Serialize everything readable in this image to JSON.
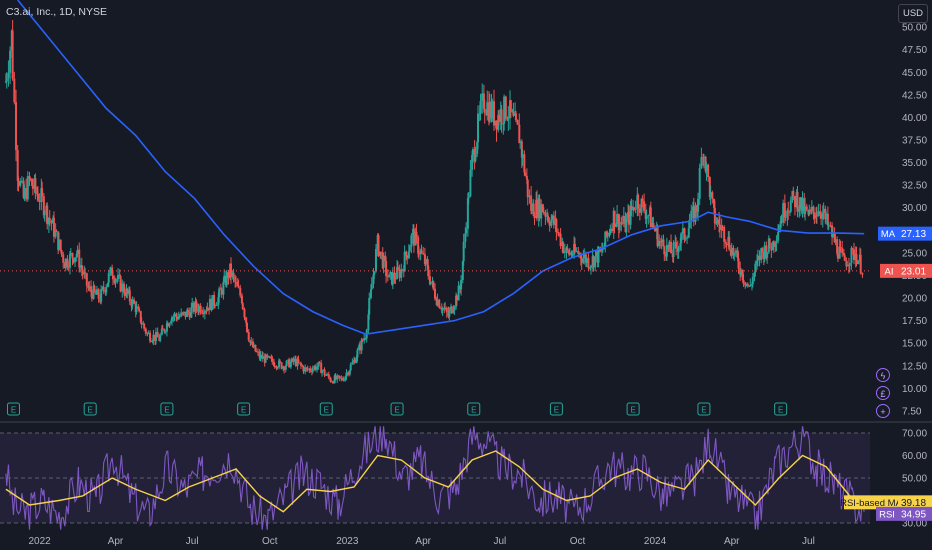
{
  "header": {
    "title": "C3.ai, Inc., 1D, NYSE",
    "currency": "USD"
  },
  "icons": {
    "earnings": "earnings-E-icon",
    "flash": "flash-icon",
    "dividend": "dividend-icon",
    "plus": "plus-icon"
  },
  "colors": {
    "background": "#161a25",
    "up": "#26a69a",
    "down": "#ef5350",
    "ma_line": "#2962ff",
    "rsi_line": "#7e57c2",
    "rsi_ma_line": "#f7d34a",
    "rsi_band": "#7e57c2",
    "last_price": "#ef5350",
    "text": "#b2b5be"
  },
  "chart_data": [
    {
      "type": "candlestick",
      "title": "C3.ai, Inc., 1D, NYSE",
      "ylim": [
        6.5,
        53
      ],
      "y_ticks": [
        "7.50",
        "10.00",
        "12.50",
        "15.00",
        "17.50",
        "20.00",
        "22.50",
        "25.00",
        "27.50",
        "30.00",
        "32.50",
        "35.00",
        "37.50",
        "40.00",
        "42.50",
        "45.00",
        "47.50",
        "50.00",
        "52.50"
      ],
      "x_ticks": [
        "2022",
        "Apr",
        "Jul",
        "Oct",
        "2023",
        "Apr",
        "Jul",
        "Oct",
        "2024",
        "Apr",
        "Jul"
      ],
      "series_close": [
        [
          "2021-11-22",
          44
        ],
        [
          "2021-11-29",
          49
        ],
        [
          "2021-12-06",
          34
        ],
        [
          "2021-12-13",
          31
        ],
        [
          "2021-12-20",
          33
        ],
        [
          "2022-01-03",
          31
        ],
        [
          "2022-01-17",
          28
        ],
        [
          "2022-01-31",
          24
        ],
        [
          "2022-02-14",
          25
        ],
        [
          "2022-02-28",
          21
        ],
        [
          "2022-03-14",
          20
        ],
        [
          "2022-03-28",
          23
        ],
        [
          "2022-04-11",
          21
        ],
        [
          "2022-04-25",
          19
        ],
        [
          "2022-05-09",
          16
        ],
        [
          "2022-05-23",
          15.5
        ],
        [
          "2022-06-06",
          18
        ],
        [
          "2022-06-20",
          18
        ],
        [
          "2022-07-05",
          19
        ],
        [
          "2022-07-18",
          19
        ],
        [
          "2022-08-01",
          20
        ],
        [
          "2022-08-15",
          23
        ],
        [
          "2022-08-29",
          20
        ],
        [
          "2022-09-08",
          15
        ],
        [
          "2022-09-19",
          13.5
        ],
        [
          "2022-10-03",
          13
        ],
        [
          "2022-10-17",
          12.5
        ],
        [
          "2022-10-31",
          13
        ],
        [
          "2022-11-14",
          12
        ],
        [
          "2022-11-28",
          12.5
        ],
        [
          "2022-12-12",
          11
        ],
        [
          "2022-12-27",
          11
        ],
        [
          "2023-01-09",
          13
        ],
        [
          "2023-01-23",
          16
        ],
        [
          "2023-02-06",
          26
        ],
        [
          "2023-02-20",
          22
        ],
        [
          "2023-03-06",
          23
        ],
        [
          "2023-03-20",
          27
        ],
        [
          "2023-04-03",
          24
        ],
        [
          "2023-04-17",
          20
        ],
        [
          "2023-05-01",
          18
        ],
        [
          "2023-05-15",
          21
        ],
        [
          "2023-05-29",
          35
        ],
        [
          "2023-06-12",
          42
        ],
        [
          "2023-06-26",
          40
        ],
        [
          "2023-07-10",
          41
        ],
        [
          "2023-07-24",
          38
        ],
        [
          "2023-08-07",
          30
        ],
        [
          "2023-08-21",
          30
        ],
        [
          "2023-09-05",
          28
        ],
        [
          "2023-09-18",
          25
        ],
        [
          "2023-10-02",
          25
        ],
        [
          "2023-10-16",
          24
        ],
        [
          "2023-10-30",
          25
        ],
        [
          "2023-11-13",
          29
        ],
        [
          "2023-11-27",
          28
        ],
        [
          "2023-12-11",
          31
        ],
        [
          "2023-12-26",
          29
        ],
        [
          "2024-01-08",
          26
        ],
        [
          "2024-01-22",
          25
        ],
        [
          "2024-02-05",
          27
        ],
        [
          "2024-02-20",
          30
        ],
        [
          "2024-02-27",
          37
        ],
        [
          "2024-03-11",
          29
        ],
        [
          "2024-03-25",
          27
        ],
        [
          "2024-04-08",
          24
        ],
        [
          "2024-04-22",
          21
        ],
        [
          "2024-05-06",
          25
        ],
        [
          "2024-05-20",
          26
        ],
        [
          "2024-06-03",
          30
        ],
        [
          "2024-06-17",
          31
        ],
        [
          "2024-07-01",
          29
        ],
        [
          "2024-07-15",
          30
        ],
        [
          "2024-07-29",
          27
        ],
        [
          "2024-08-12",
          24
        ],
        [
          "2024-08-26",
          25
        ],
        [
          "2024-09-05",
          23.01
        ]
      ],
      "series_ma": [
        [
          "2021-12-06",
          53
        ],
        [
          "2022-01-10",
          49
        ],
        [
          "2022-02-14",
          45
        ],
        [
          "2022-03-21",
          41
        ],
        [
          "2022-04-25",
          38
        ],
        [
          "2022-05-30",
          34
        ],
        [
          "2022-07-04",
          31
        ],
        [
          "2022-08-08",
          27
        ],
        [
          "2022-09-12",
          23.5
        ],
        [
          "2022-10-17",
          20.5
        ],
        [
          "2022-11-21",
          18.5
        ],
        [
          "2022-12-26",
          17
        ],
        [
          "2023-01-23",
          16
        ],
        [
          "2023-02-27",
          16.5
        ],
        [
          "2023-04-03",
          17
        ],
        [
          "2023-05-08",
          17.5
        ],
        [
          "2023-06-12",
          18.5
        ],
        [
          "2023-07-17",
          20.5
        ],
        [
          "2023-08-21",
          23
        ],
        [
          "2023-09-25",
          24.5
        ],
        [
          "2023-10-30",
          25.5
        ],
        [
          "2023-12-04",
          27
        ],
        [
          "2024-01-08",
          28
        ],
        [
          "2024-02-12",
          28.5
        ],
        [
          "2024-03-04",
          29.5
        ],
        [
          "2024-03-25",
          29
        ],
        [
          "2024-04-22",
          28.5
        ],
        [
          "2024-05-27",
          27.5
        ],
        [
          "2024-07-01",
          27.2
        ],
        [
          "2024-08-05",
          27.2
        ],
        [
          "2024-09-05",
          27.13
        ]
      ],
      "last_price": {
        "label": "AI",
        "value": "23.01"
      },
      "ma_value": {
        "label": "MA",
        "value": "27.13"
      },
      "earnings_dates": [
        "2021-12-01",
        "2022-03-02",
        "2022-06-01",
        "2022-08-31",
        "2022-12-07",
        "2023-03-01",
        "2023-05-31",
        "2023-09-06",
        "2023-12-06",
        "2024-02-28",
        "2024-05-29"
      ]
    },
    {
      "type": "line",
      "ylim": [
        26,
        74
      ],
      "y_ticks": [
        "30.00",
        "40.00",
        "50.00",
        "60.00",
        "70.00"
      ],
      "bands": [
        30,
        70
      ],
      "midline": 50,
      "series": [
        {
          "name": "RSI",
          "value": "34.95"
        },
        {
          "name": "RSI-based MA",
          "value": "39.18"
        }
      ],
      "rsi": [
        [
          "2021-11-22",
          55
        ],
        [
          "2021-12-01",
          38
        ],
        [
          "2021-12-15",
          34
        ],
        [
          "2022-01-05",
          40
        ],
        [
          "2022-01-26",
          33
        ],
        [
          "2022-02-16",
          48
        ],
        [
          "2022-03-09",
          40
        ],
        [
          "2022-03-30",
          60
        ],
        [
          "2022-04-20",
          42
        ],
        [
          "2022-05-11",
          33
        ],
        [
          "2022-06-01",
          55
        ],
        [
          "2022-06-22",
          45
        ],
        [
          "2022-07-13",
          52
        ],
        [
          "2022-08-03",
          56
        ],
        [
          "2022-08-17",
          60
        ],
        [
          "2022-09-07",
          38
        ],
        [
          "2022-09-28",
          31
        ],
        [
          "2022-10-19",
          42
        ],
        [
          "2022-11-09",
          52
        ],
        [
          "2022-11-30",
          48
        ],
        [
          "2022-12-21",
          38
        ],
        [
          "2023-01-11",
          55
        ],
        [
          "2023-02-01",
          67
        ],
        [
          "2023-02-15",
          72
        ],
        [
          "2023-03-08",
          50
        ],
        [
          "2023-03-29",
          58
        ],
        [
          "2023-04-19",
          42
        ],
        [
          "2023-05-10",
          45
        ],
        [
          "2023-05-31",
          70
        ],
        [
          "2023-06-14",
          66
        ],
        [
          "2023-07-05",
          55
        ],
        [
          "2023-07-26",
          52
        ],
        [
          "2023-08-16",
          40
        ],
        [
          "2023-09-06",
          42
        ],
        [
          "2023-09-27",
          35
        ],
        [
          "2023-10-18",
          43
        ],
        [
          "2023-11-08",
          56
        ],
        [
          "2023-11-29",
          52
        ],
        [
          "2023-12-20",
          54
        ],
        [
          "2024-01-10",
          42
        ],
        [
          "2024-01-31",
          45
        ],
        [
          "2024-02-21",
          52
        ],
        [
          "2024-03-06",
          68
        ],
        [
          "2024-03-27",
          45
        ],
        [
          "2024-04-17",
          38
        ],
        [
          "2024-05-01",
          32
        ],
        [
          "2024-05-22",
          55
        ],
        [
          "2024-06-12",
          65
        ],
        [
          "2024-06-26",
          68
        ],
        [
          "2024-07-10",
          55
        ],
        [
          "2024-07-31",
          48
        ],
        [
          "2024-08-21",
          40
        ],
        [
          "2024-09-05",
          34.95
        ]
      ],
      "rsi_ma": [
        [
          "2021-11-22",
          45
        ],
        [
          "2021-12-20",
          38
        ],
        [
          "2022-01-24",
          40
        ],
        [
          "2022-02-21",
          42
        ],
        [
          "2022-03-28",
          50
        ],
        [
          "2022-04-25",
          45
        ],
        [
          "2022-05-30",
          40
        ],
        [
          "2022-06-27",
          46
        ],
        [
          "2022-07-25",
          50
        ],
        [
          "2022-08-22",
          54
        ],
        [
          "2022-09-19",
          42
        ],
        [
          "2022-10-17",
          35
        ],
        [
          "2022-11-14",
          45
        ],
        [
          "2022-12-12",
          44
        ],
        [
          "2023-01-09",
          46
        ],
        [
          "2023-02-06",
          60
        ],
        [
          "2023-03-06",
          58
        ],
        [
          "2023-04-03",
          50
        ],
        [
          "2023-05-01",
          46
        ],
        [
          "2023-05-29",
          58
        ],
        [
          "2023-06-26",
          62
        ],
        [
          "2023-07-24",
          55
        ],
        [
          "2023-08-21",
          45
        ],
        [
          "2023-09-18",
          40
        ],
        [
          "2023-10-16",
          42
        ],
        [
          "2023-11-13",
          50
        ],
        [
          "2023-12-11",
          54
        ],
        [
          "2024-01-08",
          48
        ],
        [
          "2024-02-05",
          45
        ],
        [
          "2024-03-04",
          58
        ],
        [
          "2024-04-01",
          48
        ],
        [
          "2024-04-29",
          38
        ],
        [
          "2024-05-27",
          50
        ],
        [
          "2024-06-24",
          60
        ],
        [
          "2024-07-22",
          55
        ],
        [
          "2024-08-19",
          42
        ],
        [
          "2024-09-05",
          39.18
        ]
      ]
    }
  ]
}
